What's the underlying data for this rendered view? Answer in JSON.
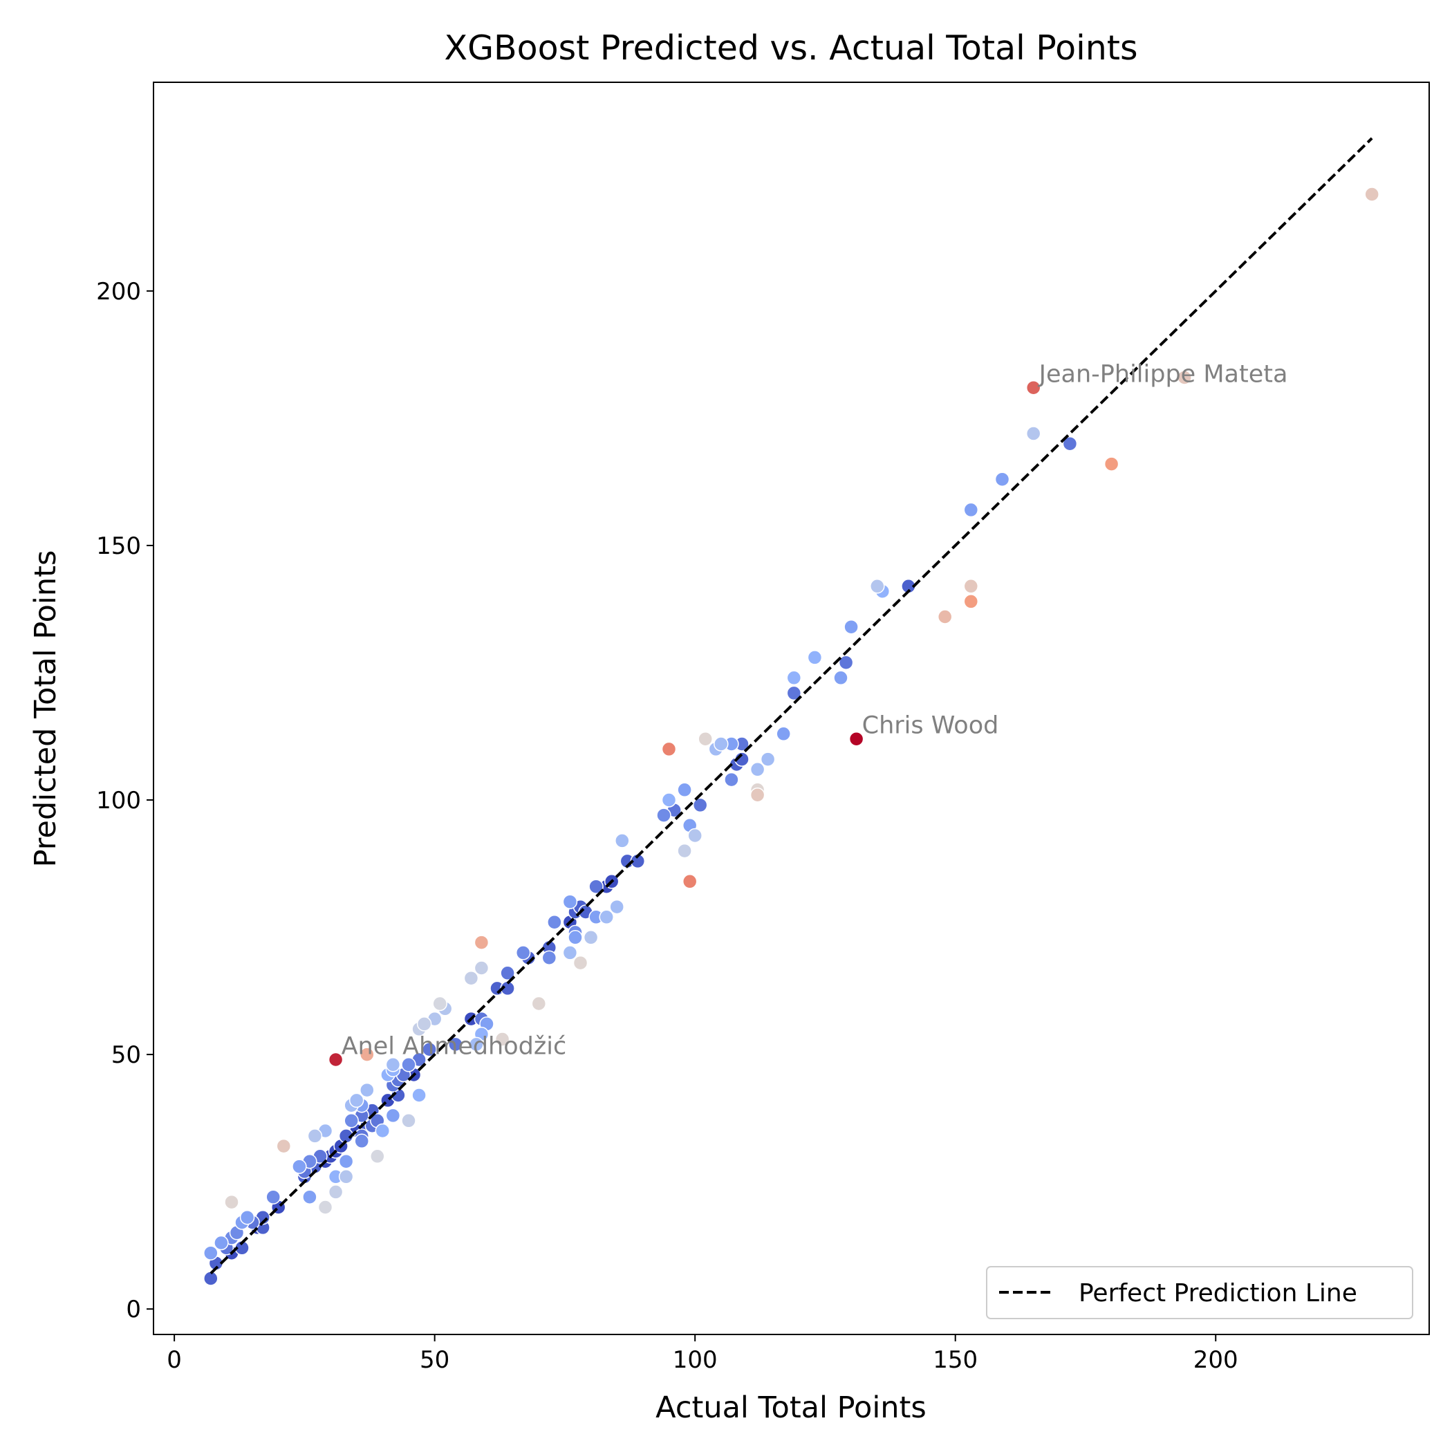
{
  "chart_data": {
    "type": "scatter",
    "title": "XGBoost Predicted vs. Actual Total Points",
    "xlabel": "Actual Total Points",
    "ylabel": "Predicted Total Points",
    "xlim": [
      -4,
      241
    ],
    "ylim": [
      -5,
      241
    ],
    "x_ticks": [
      0,
      50,
      100,
      150,
      200
    ],
    "y_ticks": [
      0,
      50,
      100,
      150,
      200
    ],
    "x_tick_labels": [
      "0",
      "50",
      "100",
      "150",
      "200"
    ],
    "y_tick_labels": [
      "0",
      "50",
      "100",
      "150",
      "200"
    ],
    "grid": false,
    "legend": {
      "position": "lower right",
      "entries": [
        {
          "label": "Perfect Prediction Line",
          "style": "dashed",
          "color": "#000000"
        }
      ]
    },
    "reference_line": {
      "label": "Perfect Prediction Line",
      "x": [
        7,
        230
      ],
      "y": [
        7,
        230
      ]
    },
    "colormap": "coolwarm",
    "points": [
      {
        "x": 7,
        "y": 6
      },
      {
        "x": 7,
        "y": 11
      },
      {
        "x": 8,
        "y": 9
      },
      {
        "x": 9,
        "y": 13
      },
      {
        "x": 10,
        "y": 12
      },
      {
        "x": 11,
        "y": 11
      },
      {
        "x": 11,
        "y": 14
      },
      {
        "x": 11,
        "y": 21
      },
      {
        "x": 12,
        "y": 15
      },
      {
        "x": 13,
        "y": 12
      },
      {
        "x": 13,
        "y": 17
      },
      {
        "x": 14,
        "y": 18
      },
      {
        "x": 15,
        "y": 17
      },
      {
        "x": 16,
        "y": 16
      },
      {
        "x": 17,
        "y": 16
      },
      {
        "x": 17,
        "y": 18
      },
      {
        "x": 19,
        "y": 22
      },
      {
        "x": 20,
        "y": 20
      },
      {
        "x": 21,
        "y": 32
      },
      {
        "x": 24,
        "y": 28
      },
      {
        "x": 25,
        "y": 26
      },
      {
        "x": 25,
        "y": 27
      },
      {
        "x": 26,
        "y": 22
      },
      {
        "x": 26,
        "y": 29
      },
      {
        "x": 27,
        "y": 28
      },
      {
        "x": 27,
        "y": 34
      },
      {
        "x": 28,
        "y": 30
      },
      {
        "x": 29,
        "y": 20
      },
      {
        "x": 29,
        "y": 29
      },
      {
        "x": 29,
        "y": 35
      },
      {
        "x": 30,
        "y": 30
      },
      {
        "x": 31,
        "y": 23
      },
      {
        "x": 31,
        "y": 26
      },
      {
        "x": 31,
        "y": 31
      },
      {
        "x": 31,
        "y": 49
      },
      {
        "x": 32,
        "y": 32
      },
      {
        "x": 33,
        "y": 26
      },
      {
        "x": 33,
        "y": 29
      },
      {
        "x": 33,
        "y": 34
      },
      {
        "x": 34,
        "y": 37
      },
      {
        "x": 34,
        "y": 40
      },
      {
        "x": 35,
        "y": 35
      },
      {
        "x": 35,
        "y": 41
      },
      {
        "x": 36,
        "y": 33
      },
      {
        "x": 36,
        "y": 34
      },
      {
        "x": 36,
        "y": 38
      },
      {
        "x": 36,
        "y": 40
      },
      {
        "x": 37,
        "y": 36
      },
      {
        "x": 37,
        "y": 38
      },
      {
        "x": 37,
        "y": 43
      },
      {
        "x": 37,
        "y": 50
      },
      {
        "x": 38,
        "y": 36
      },
      {
        "x": 38,
        "y": 39
      },
      {
        "x": 39,
        "y": 30
      },
      {
        "x": 39,
        "y": 37
      },
      {
        "x": 40,
        "y": 35
      },
      {
        "x": 41,
        "y": 41
      },
      {
        "x": 41,
        "y": 46
      },
      {
        "x": 42,
        "y": 38
      },
      {
        "x": 42,
        "y": 44
      },
      {
        "x": 42,
        "y": 47
      },
      {
        "x": 42,
        "y": 48
      },
      {
        "x": 43,
        "y": 42
      },
      {
        "x": 43,
        "y": 45
      },
      {
        "x": 44,
        "y": 46
      },
      {
        "x": 45,
        "y": 37
      },
      {
        "x": 45,
        "y": 48
      },
      {
        "x": 46,
        "y": 46
      },
      {
        "x": 47,
        "y": 42
      },
      {
        "x": 47,
        "y": 49
      },
      {
        "x": 47,
        "y": 55
      },
      {
        "x": 48,
        "y": 56
      },
      {
        "x": 49,
        "y": 51
      },
      {
        "x": 50,
        "y": 57
      },
      {
        "x": 51,
        "y": 60
      },
      {
        "x": 52,
        "y": 59
      },
      {
        "x": 54,
        "y": 52
      },
      {
        "x": 57,
        "y": 57
      },
      {
        "x": 57,
        "y": 65
      },
      {
        "x": 58,
        "y": 52
      },
      {
        "x": 59,
        "y": 54
      },
      {
        "x": 59,
        "y": 57
      },
      {
        "x": 59,
        "y": 67
      },
      {
        "x": 59,
        "y": 72
      },
      {
        "x": 60,
        "y": 56
      },
      {
        "x": 62,
        "y": 63
      },
      {
        "x": 63,
        "y": 53
      },
      {
        "x": 64,
        "y": 63
      },
      {
        "x": 64,
        "y": 66
      },
      {
        "x": 67,
        "y": 70
      },
      {
        "x": 68,
        "y": 69
      },
      {
        "x": 70,
        "y": 60
      },
      {
        "x": 72,
        "y": 69
      },
      {
        "x": 72,
        "y": 71
      },
      {
        "x": 73,
        "y": 76
      },
      {
        "x": 76,
        "y": 70
      },
      {
        "x": 76,
        "y": 76
      },
      {
        "x": 76,
        "y": 80
      },
      {
        "x": 77,
        "y": 73
      },
      {
        "x": 77,
        "y": 74
      },
      {
        "x": 77,
        "y": 78
      },
      {
        "x": 78,
        "y": 68
      },
      {
        "x": 78,
        "y": 79
      },
      {
        "x": 79,
        "y": 78
      },
      {
        "x": 80,
        "y": 73
      },
      {
        "x": 81,
        "y": 77
      },
      {
        "x": 81,
        "y": 83
      },
      {
        "x": 83,
        "y": 77
      },
      {
        "x": 83,
        "y": 83
      },
      {
        "x": 84,
        "y": 84
      },
      {
        "x": 85,
        "y": 79
      },
      {
        "x": 86,
        "y": 92
      },
      {
        "x": 87,
        "y": 88
      },
      {
        "x": 89,
        "y": 88
      },
      {
        "x": 94,
        "y": 97
      },
      {
        "x": 95,
        "y": 100
      },
      {
        "x": 95,
        "y": 110
      },
      {
        "x": 96,
        "y": 98
      },
      {
        "x": 98,
        "y": 90
      },
      {
        "x": 98,
        "y": 102
      },
      {
        "x": 99,
        "y": 84
      },
      {
        "x": 99,
        "y": 95
      },
      {
        "x": 100,
        "y": 93
      },
      {
        "x": 101,
        "y": 99
      },
      {
        "x": 102,
        "y": 112
      },
      {
        "x": 104,
        "y": 110
      },
      {
        "x": 105,
        "y": 111
      },
      {
        "x": 107,
        "y": 104
      },
      {
        "x": 107,
        "y": 111
      },
      {
        "x": 108,
        "y": 107
      },
      {
        "x": 109,
        "y": 108
      },
      {
        "x": 109,
        "y": 111
      },
      {
        "x": 112,
        "y": 101
      },
      {
        "x": 112,
        "y": 102
      },
      {
        "x": 112,
        "y": 106
      },
      {
        "x": 114,
        "y": 108
      },
      {
        "x": 117,
        "y": 113
      },
      {
        "x": 119,
        "y": 121
      },
      {
        "x": 119,
        "y": 124
      },
      {
        "x": 123,
        "y": 128
      },
      {
        "x": 128,
        "y": 124
      },
      {
        "x": 129,
        "y": 127
      },
      {
        "x": 130,
        "y": 134
      },
      {
        "x": 131,
        "y": 112
      },
      {
        "x": 135,
        "y": 142
      },
      {
        "x": 136,
        "y": 141
      },
      {
        "x": 141,
        "y": 142
      },
      {
        "x": 148,
        "y": 136
      },
      {
        "x": 153,
        "y": 139
      },
      {
        "x": 153,
        "y": 142
      },
      {
        "x": 153,
        "y": 157
      },
      {
        "x": 159,
        "y": 163
      },
      {
        "x": 165,
        "y": 172
      },
      {
        "x": 165,
        "y": 181
      },
      {
        "x": 172,
        "y": 170
      },
      {
        "x": 180,
        "y": 166
      },
      {
        "x": 194,
        "y": 183
      },
      {
        "x": 230,
        "y": 219
      }
    ],
    "annotations": [
      {
        "text": "Jean-Philippe Mateta",
        "x": 165,
        "y": 181
      },
      {
        "text": "Chris Wood",
        "x": 131,
        "y": 112
      },
      {
        "text": "Anel Ahmedhodžić",
        "x": 31,
        "y": 49
      }
    ]
  }
}
